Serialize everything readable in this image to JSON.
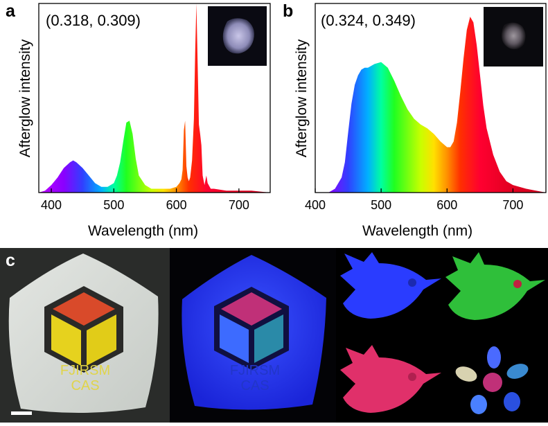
{
  "panels": {
    "a": {
      "letter": "a",
      "coord_text": "(0.318, 0.309)"
    },
    "b": {
      "letter": "b",
      "coord_text": "(0.324, 0.349)"
    },
    "c": {
      "letter": "c",
      "logo_text_line1": "FJIRSM",
      "logo_text_line2": "CAS"
    }
  },
  "chart_data": [
    {
      "type": "area",
      "panel": "a",
      "xlabel": "Wavelength (nm)",
      "ylabel": "Afterglow intensity",
      "xlim": [
        380,
        750
      ],
      "ylim": [
        0,
        1
      ],
      "xticks": [
        400,
        500,
        600,
        700
      ],
      "grid": false,
      "fill": "spectral-gradient",
      "series": [
        {
          "x": [
            380,
            390,
            400,
            410,
            420,
            430,
            435,
            440,
            450,
            460,
            470,
            480,
            490,
            500,
            505,
            510,
            515,
            520,
            525,
            530,
            535,
            540,
            550,
            560,
            570,
            580,
            590,
            600,
            605,
            608,
            610,
            612,
            614,
            616,
            618,
            620,
            622,
            625,
            628,
            630,
            632,
            634,
            636,
            638,
            640,
            642,
            645,
            648,
            650,
            655,
            660,
            680,
            700,
            720,
            750
          ],
          "y": [
            0.0,
            0.01,
            0.04,
            0.08,
            0.13,
            0.16,
            0.17,
            0.16,
            0.13,
            0.09,
            0.05,
            0.03,
            0.03,
            0.05,
            0.09,
            0.16,
            0.27,
            0.37,
            0.38,
            0.31,
            0.18,
            0.09,
            0.04,
            0.02,
            0.02,
            0.02,
            0.02,
            0.03,
            0.05,
            0.07,
            0.12,
            0.33,
            0.38,
            0.14,
            0.08,
            0.06,
            0.08,
            0.17,
            0.39,
            0.74,
            1.0,
            0.68,
            0.36,
            0.31,
            0.25,
            0.09,
            0.04,
            0.09,
            0.05,
            0.02,
            0.02,
            0.01,
            0.01,
            0.01,
            0.0
          ]
        }
      ]
    },
    {
      "type": "area",
      "panel": "b",
      "xlabel": "Wavelength (nm)",
      "ylabel": "Afterglow intensity",
      "xlim": [
        400,
        750
      ],
      "ylim": [
        0,
        1
      ],
      "xticks": [
        400,
        500,
        600,
        700
      ],
      "grid": false,
      "fill": "spectral-gradient",
      "series": [
        {
          "x": [
            420,
            430,
            440,
            445,
            450,
            455,
            460,
            465,
            470,
            475,
            480,
            490,
            500,
            510,
            520,
            530,
            540,
            550,
            560,
            570,
            580,
            590,
            600,
            605,
            610,
            615,
            620,
            625,
            630,
            635,
            640,
            645,
            650,
            655,
            660,
            670,
            680,
            690,
            700,
            720,
            750
          ],
          "y": [
            0.0,
            0.02,
            0.08,
            0.16,
            0.32,
            0.47,
            0.57,
            0.62,
            0.65,
            0.66,
            0.66,
            0.68,
            0.69,
            0.66,
            0.59,
            0.51,
            0.44,
            0.39,
            0.36,
            0.34,
            0.31,
            0.27,
            0.24,
            0.24,
            0.27,
            0.37,
            0.53,
            0.71,
            0.86,
            0.93,
            0.9,
            0.78,
            0.62,
            0.46,
            0.34,
            0.2,
            0.11,
            0.06,
            0.04,
            0.02,
            0.0
          ]
        }
      ]
    }
  ],
  "colors": {
    "axis": "#000000",
    "photo_background": "#000000",
    "daylight_panel": "#d9ddd9",
    "logo_red": "#d94a2a",
    "logo_yellow": "#e6d21e",
    "glow_blue": "#2a3cff",
    "glow_green": "#2fbf3a",
    "glow_pink": "#e0306a",
    "scale_bar": "#ffffff"
  }
}
